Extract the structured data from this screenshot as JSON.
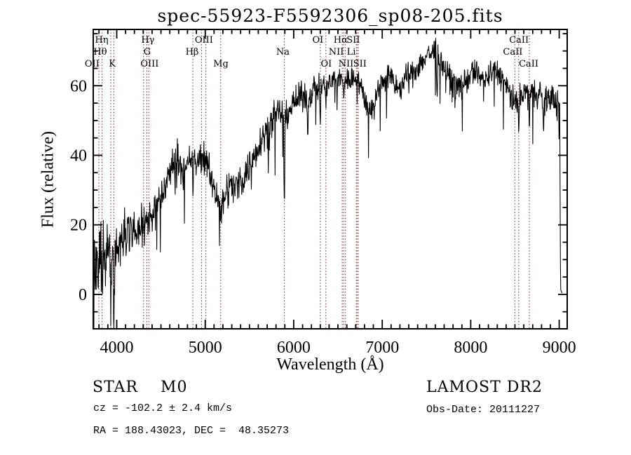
{
  "title": "spec-55923-F5592306_sp08-205.fits",
  "colors": {
    "background": "#ffffff",
    "spectrum": "#000000",
    "frame": "#000000",
    "line_marker": "#8a4040",
    "text": "#000000"
  },
  "axes": {
    "x": {
      "label": "Wavelength (Å)",
      "ticks": [
        4000,
        5000,
        6000,
        7000,
        8000,
        9000
      ],
      "minor_step": 100
    },
    "y": {
      "label": "Flux (relative)",
      "ticks": [
        0,
        20,
        40,
        60
      ],
      "minor_step": 5
    }
  },
  "footer": {
    "object_type": "STAR    M0",
    "survey": "LAMOST DR2",
    "cz": "cz = -102.2 ± 2.4 km/s",
    "obs_date": "Obs-Date: 20111227",
    "coords": "RA = 188.43023, DEC =  48.35273"
  },
  "spectral_lines": {
    "markers": [
      {
        "name": "OII",
        "lambda": 3727
      },
      {
        "name": "Htheta",
        "lambda": 3798
      },
      {
        "name": "Heta",
        "lambda": 3835
      },
      {
        "name": "K",
        "lambda": 3933
      },
      {
        "name": "H",
        "lambda": 3968
      },
      {
        "name": "G",
        "lambda": 4304
      },
      {
        "name": "Hgamma",
        "lambda": 4340
      },
      {
        "name": "OIII-4363",
        "lambda": 4363
      },
      {
        "name": "Hbeta",
        "lambda": 4861
      },
      {
        "name": "OIII-4959",
        "lambda": 4959
      },
      {
        "name": "OIII-5007",
        "lambda": 5007
      },
      {
        "name": "Mg",
        "lambda": 5175
      },
      {
        "name": "Na",
        "lambda": 5894
      },
      {
        "name": "OI-6300",
        "lambda": 6300
      },
      {
        "name": "OI-6363",
        "lambda": 6363
      },
      {
        "name": "NII-6548",
        "lambda": 6548
      },
      {
        "name": "Halpha",
        "lambda": 6563
      },
      {
        "name": "NII-6583",
        "lambda": 6583
      },
      {
        "name": "Li",
        "lambda": 6707
      },
      {
        "name": "SII-6716",
        "lambda": 6716
      },
      {
        "name": "SII-6730",
        "lambda": 6730
      },
      {
        "name": "CaII-8498",
        "lambda": 8498
      },
      {
        "name": "CaII-8542",
        "lambda": 8542
      },
      {
        "name": "CaII-8662",
        "lambda": 8662
      }
    ],
    "labels": [
      {
        "text": "Hη",
        "row": 1,
        "label_lambda": 3830
      },
      {
        "text": "Hγ",
        "row": 1,
        "label_lambda": 4352
      },
      {
        "text": "OIII",
        "row": 1,
        "label_lambda": 4986
      },
      {
        "text": "OI",
        "row": 1,
        "label_lambda": 6273
      },
      {
        "text": "Hα",
        "row": 1,
        "label_lambda": 6530
      },
      {
        "text": "SII",
        "row": 1,
        "label_lambda": 6673
      },
      {
        "text": "CaII",
        "row": 1,
        "label_lambda": 8545
      },
      {
        "text": "Hθ",
        "row": 2,
        "label_lambda": 3814
      },
      {
        "text": "G",
        "row": 2,
        "label_lambda": 4345
      },
      {
        "text": "Hβ",
        "row": 2,
        "label_lambda": 4852
      },
      {
        "text": "Na",
        "row": 2,
        "label_lambda": 5877
      },
      {
        "text": "NII",
        "row": 2,
        "label_lambda": 6480
      },
      {
        "text": "Li",
        "row": 2,
        "label_lambda": 6650
      },
      {
        "text": "CaII",
        "row": 2,
        "label_lambda": 8475
      },
      {
        "text": "OII",
        "row": 3,
        "label_lambda": 3722
      },
      {
        "text": "K",
        "row": 3,
        "label_lambda": 3950
      },
      {
        "text": "OIII",
        "row": 3,
        "label_lambda": 4372
      },
      {
        "text": "Mg",
        "row": 3,
        "label_lambda": 5177
      },
      {
        "text": "OI",
        "row": 3,
        "label_lambda": 6368
      },
      {
        "text": "NII",
        "row": 3,
        "label_lambda": 6590
      },
      {
        "text": "SII",
        "row": 3,
        "label_lambda": 6748
      },
      {
        "text": "CaII",
        "row": 3,
        "label_lambda": 8655
      }
    ]
  },
  "chart_data": {
    "type": "line",
    "title": "spec-55923-F5592306_sp08-205.fits",
    "xlabel": "Wavelength (Å)",
    "ylabel": "Flux (relative)",
    "x_range": [
      3735,
      9090
    ],
    "y_range": [
      -9.9,
      76.2
    ],
    "x_ticks": [
      4000,
      5000,
      6000,
      7000,
      8000,
      9000
    ],
    "y_ticks": [
      0,
      20,
      40,
      60
    ],
    "grid": false,
    "legend": false,
    "series": [
      {
        "name": "spectrum",
        "envelope_points": [
          [
            3705,
            3
          ],
          [
            3712,
            5
          ],
          [
            3725,
            7
          ],
          [
            3740,
            8.5
          ],
          [
            3760,
            9
          ],
          [
            3780,
            9.5
          ],
          [
            3800,
            10
          ],
          [
            3820,
            10.5
          ],
          [
            3845,
            11
          ],
          [
            3870,
            12
          ],
          [
            3895,
            12
          ],
          [
            3920,
            11.5
          ],
          [
            3945,
            11
          ],
          [
            3970,
            11
          ],
          [
            3995,
            12.5
          ],
          [
            4020,
            13.5
          ],
          [
            4060,
            15.5
          ],
          [
            4100,
            17
          ],
          [
            4150,
            18
          ],
          [
            4200,
            19
          ],
          [
            4250,
            20
          ],
          [
            4300,
            20
          ],
          [
            4350,
            21.5
          ],
          [
            4400,
            23
          ],
          [
            4450,
            25.5
          ],
          [
            4500,
            28
          ],
          [
            4550,
            31
          ],
          [
            4600,
            35
          ],
          [
            4640,
            38
          ],
          [
            4680,
            39.5
          ],
          [
            4710,
            39
          ],
          [
            4740,
            35.5
          ],
          [
            4770,
            34.5
          ],
          [
            4800,
            36.5
          ],
          [
            4830,
            38.5
          ],
          [
            4860,
            39
          ],
          [
            4890,
            37.5
          ],
          [
            4920,
            38
          ],
          [
            4950,
            39.5
          ],
          [
            4980,
            40
          ],
          [
            5010,
            38.5
          ],
          [
            5040,
            35.5
          ],
          [
            5070,
            33
          ],
          [
            5100,
            31
          ],
          [
            5130,
            29
          ],
          [
            5160,
            27
          ],
          [
            5185,
            26
          ],
          [
            5210,
            28
          ],
          [
            5240,
            30
          ],
          [
            5270,
            31
          ],
          [
            5300,
            31
          ],
          [
            5330,
            30.5
          ],
          [
            5360,
            31
          ],
          [
            5390,
            32.5
          ],
          [
            5420,
            33.5
          ],
          [
            5450,
            34.5
          ],
          [
            5480,
            36
          ],
          [
            5520,
            38
          ],
          [
            5560,
            40.5
          ],
          [
            5600,
            43
          ],
          [
            5650,
            45.5
          ],
          [
            5700,
            47.5
          ],
          [
            5750,
            49.5
          ],
          [
            5800,
            51.5
          ],
          [
            5840,
            52.5
          ],
          [
            5880,
            52.5
          ],
          [
            5920,
            52
          ],
          [
            5960,
            53.5
          ],
          [
            6000,
            55
          ],
          [
            6050,
            56
          ],
          [
            6100,
            57
          ],
          [
            6150,
            57
          ],
          [
            6200,
            58.5
          ],
          [
            6250,
            59.5
          ],
          [
            6300,
            59.5
          ],
          [
            6350,
            60
          ],
          [
            6400,
            60.5
          ],
          [
            6450,
            61.5
          ],
          [
            6500,
            62
          ],
          [
            6550,
            61.5
          ],
          [
            6600,
            62
          ],
          [
            6650,
            61.5
          ],
          [
            6700,
            62.5
          ],
          [
            6740,
            61
          ],
          [
            6780,
            58
          ],
          [
            6820,
            55
          ],
          [
            6860,
            52.5
          ],
          [
            6900,
            54
          ],
          [
            6940,
            58
          ],
          [
            6980,
            60.5
          ],
          [
            7020,
            62
          ],
          [
            7060,
            63
          ],
          [
            7100,
            62
          ],
          [
            7150,
            59.5
          ],
          [
            7200,
            59.5
          ],
          [
            7250,
            61.5
          ],
          [
            7300,
            62.5
          ],
          [
            7350,
            64
          ],
          [
            7400,
            65.5
          ],
          [
            7450,
            67
          ],
          [
            7500,
            68.5
          ],
          [
            7550,
            69.5
          ],
          [
            7590,
            69.5
          ],
          [
            7600,
            74
          ],
          [
            7610,
            69.5
          ],
          [
            7650,
            67
          ],
          [
            7700,
            64.5
          ],
          [
            7750,
            63
          ],
          [
            7800,
            61.5
          ],
          [
            7850,
            59.5
          ],
          [
            7900,
            60
          ],
          [
            7950,
            61.5
          ],
          [
            8000,
            63
          ],
          [
            8050,
            64
          ],
          [
            8100,
            63
          ],
          [
            8150,
            61.5
          ],
          [
            8200,
            62.5
          ],
          [
            8250,
            64.5
          ],
          [
            8300,
            64
          ],
          [
            8350,
            62.5
          ],
          [
            8400,
            59.5
          ],
          [
            8450,
            57
          ],
          [
            8500,
            55.5
          ],
          [
            8540,
            55.5
          ],
          [
            8580,
            56.5
          ],
          [
            8620,
            58.5
          ],
          [
            8660,
            57.5
          ],
          [
            8700,
            57.5
          ],
          [
            8740,
            58.5
          ],
          [
            8780,
            58
          ],
          [
            8820,
            55
          ],
          [
            8860,
            56
          ],
          [
            8900,
            57
          ],
          [
            8940,
            56
          ],
          [
            8980,
            55
          ],
          [
            9005,
            54
          ],
          [
            9010,
            30
          ],
          [
            9014,
            2
          ],
          [
            9020,
            0.7
          ],
          [
            9035,
            0.5
          ]
        ]
      }
    ],
    "absorption_dips": [
      [
        3715,
        9,
        10
      ],
      [
        3798,
        7,
        14
      ],
      [
        3835,
        7,
        14
      ],
      [
        3872,
        6,
        9
      ],
      [
        3933,
        13,
        14
      ],
      [
        3968,
        13,
        14
      ],
      [
        4226,
        4,
        12
      ],
      [
        4310,
        3,
        18
      ],
      [
        4861,
        7,
        10
      ],
      [
        5175,
        4,
        26
      ],
      [
        5894,
        30,
        11
      ],
      [
        6160,
        11,
        12
      ],
      [
        6300,
        8,
        10
      ],
      [
        6363,
        6,
        10
      ],
      [
        6563,
        3,
        10
      ],
      [
        7620,
        13,
        9
      ],
      [
        8498,
        4,
        9
      ],
      [
        8542,
        7,
        9
      ],
      [
        8662,
        9,
        9
      ],
      [
        8820,
        7,
        12
      ]
    ],
    "noise": {
      "seed": 31415,
      "sample_step": 4,
      "spike_probability": 0.018,
      "amplitude_points": [
        [
          3705,
          5.2
        ],
        [
          3900,
          4.6
        ],
        [
          4000,
          3.4
        ],
        [
          4300,
          2.8
        ],
        [
          4700,
          2.4
        ],
        [
          5000,
          2.3
        ],
        [
          5300,
          2.7
        ],
        [
          5600,
          2.4
        ],
        [
          5900,
          2.1
        ],
        [
          6200,
          2.0
        ],
        [
          6600,
          1.9
        ],
        [
          7000,
          1.9
        ],
        [
          7600,
          2.0
        ],
        [
          8200,
          1.9
        ],
        [
          8600,
          2.2
        ],
        [
          9005,
          2.2
        ],
        [
          9012,
          0.5
        ],
        [
          9035,
          0.3
        ]
      ]
    }
  }
}
